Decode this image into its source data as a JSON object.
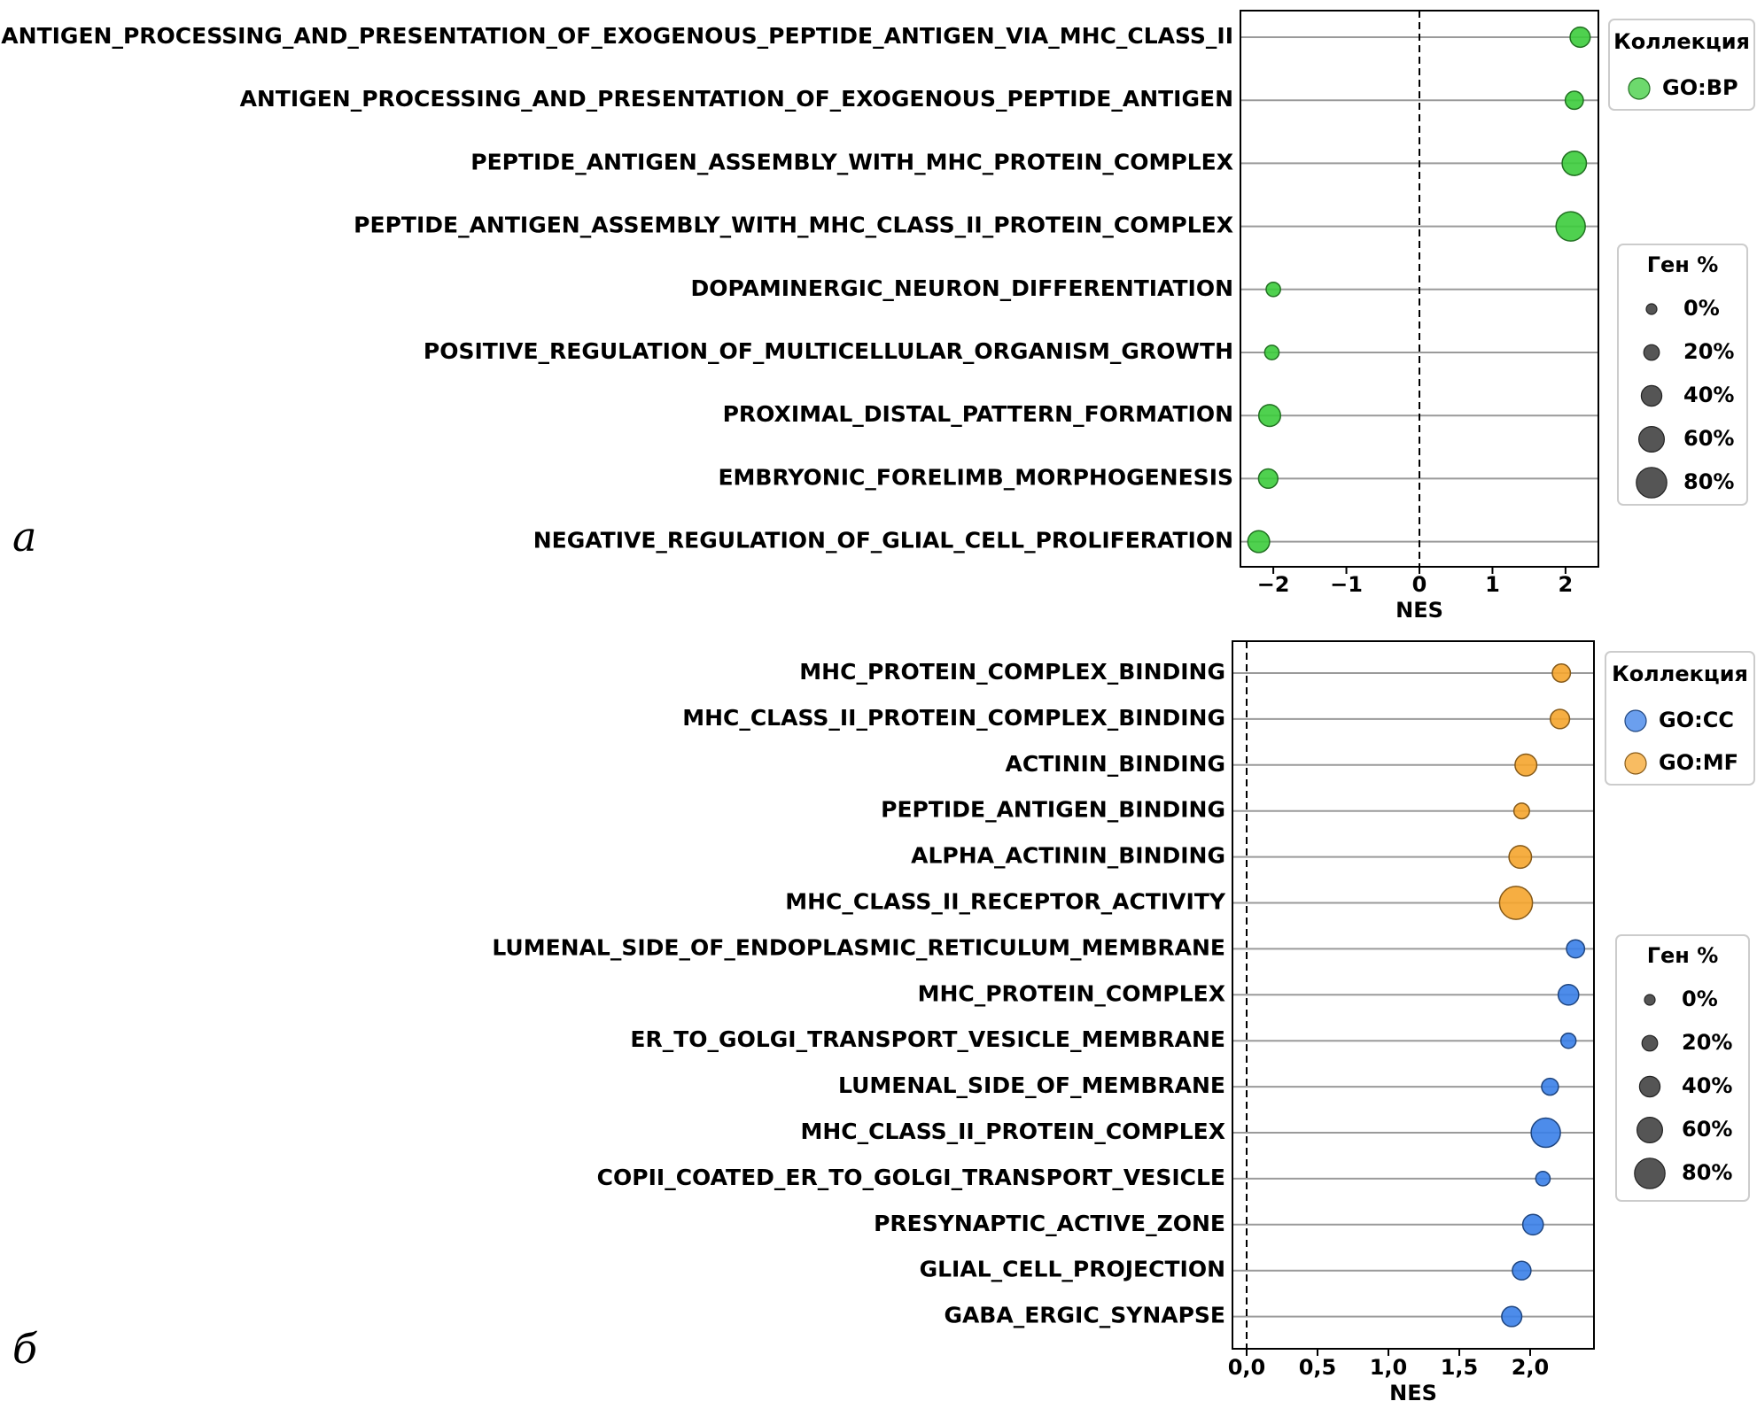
{
  "chart_data": [
    {
      "type": "scatter",
      "panel_label": "а",
      "xlabel": "NES",
      "xlim": [
        -2.45,
        2.45
      ],
      "xticks": [
        -2,
        -1,
        0,
        1,
        2
      ],
      "xtick_labels": [
        "−2",
        "−1",
        "0",
        "1",
        "2"
      ],
      "reference_line_x": 0,
      "categories": [
        "ANTIGEN_PROCESSING_AND_PRESENTATION_OF_EXOGENOUS_PEPTIDE_ANTIGEN_VIA_MHC_CLASS_II",
        "ANTIGEN_PROCESSING_AND_PRESENTATION_OF_EXOGENOUS_PEPTIDE_ANTIGEN",
        "PEPTIDE_ANTIGEN_ASSEMBLY_WITH_MHC_PROTEIN_COMPLEX",
        "PEPTIDE_ANTIGEN_ASSEMBLY_WITH_MHC_CLASS_II_PROTEIN_COMPLEX",
        "DOPAMINERGIC_NEURON_DIFFERENTIATION",
        "POSITIVE_REGULATION_OF_MULTICELLULAR_ORGANISM_GROWTH",
        "PROXIMAL_DISTAL_PATTERN_FORMATION",
        "EMBRYONIC_FORELIMB_MORPHOGENESIS",
        "NEGATIVE_REGULATION_OF_GLIAL_CELL_PROLIFERATION"
      ],
      "points": [
        {
          "nes": 2.2,
          "gene_pct": 38,
          "collection": "GO:BP"
        },
        {
          "nes": 2.12,
          "gene_pct": 30,
          "collection": "GO:BP"
        },
        {
          "nes": 2.12,
          "gene_pct": 55,
          "collection": "GO:BP"
        },
        {
          "nes": 2.07,
          "gene_pct": 75,
          "collection": "GO:BP"
        },
        {
          "nes": -2.0,
          "gene_pct": 15,
          "collection": "GO:BP"
        },
        {
          "nes": -2.02,
          "gene_pct": 15,
          "collection": "GO:BP"
        },
        {
          "nes": -2.05,
          "gene_pct": 45,
          "collection": "GO:BP"
        },
        {
          "nes": -2.07,
          "gene_pct": 35,
          "collection": "GO:BP"
        },
        {
          "nes": -2.2,
          "gene_pct": 45,
          "collection": "GO:BP"
        }
      ],
      "collection_legend": {
        "title": "Коллекция",
        "entries": [
          {
            "label": "GO:BP",
            "color": "#3ccc3c"
          }
        ]
      },
      "size_legend": {
        "title": "Ген %",
        "entries": [
          {
            "label": "0%",
            "pct": 0
          },
          {
            "label": "20%",
            "pct": 20
          },
          {
            "label": "40%",
            "pct": 40
          },
          {
            "label": "60%",
            "pct": 60
          },
          {
            "label": "80%",
            "pct": 80
          }
        ]
      },
      "grid": "horizontal"
    },
    {
      "type": "scatter",
      "panel_label": "б",
      "xlabel": "NES",
      "xlim": [
        -0.1,
        2.45
      ],
      "xticks": [
        0,
        0.5,
        1,
        1.5,
        2
      ],
      "xtick_labels": [
        "0,0",
        "0,5",
        "1,0",
        "1,5",
        "2,0"
      ],
      "reference_line_x": 0,
      "categories": [
        "MHC_PROTEIN_COMPLEX_BINDING",
        "MHC_CLASS_II_PROTEIN_COMPLEX_BINDING",
        "ACTININ_BINDING",
        "PEPTIDE_ANTIGEN_BINDING",
        "ALPHA_ACTININ_BINDING",
        "MHC_CLASS_II_RECEPTOR_ACTIVITY",
        "LUMENAL_SIDE_OF_ENDOPLASMIC_RETICULUM_MEMBRANE",
        "MHC_PROTEIN_COMPLEX",
        "ER_TO_GOLGI_TRANSPORT_VESICLE_MEMBRANE",
        "LUMENAL_SIDE_OF_MEMBRANE",
        "MHC_CLASS_II_PROTEIN_COMPLEX",
        "COPII_COATED_ER_TO_GOLGI_TRANSPORT_VESICLE",
        "PRESYNAPTIC_ACTIVE_ZONE",
        "GLIAL_CELL_PROJECTION",
        "GABA_ERGIC_SYNAPSE"
      ],
      "points": [
        {
          "nes": 2.22,
          "gene_pct": 30,
          "collection": "GO:MF"
        },
        {
          "nes": 2.21,
          "gene_pct": 35,
          "collection": "GO:MF"
        },
        {
          "nes": 1.97,
          "gene_pct": 45,
          "collection": "GO:MF"
        },
        {
          "nes": 1.94,
          "gene_pct": 20,
          "collection": "GO:MF"
        },
        {
          "nes": 1.93,
          "gene_pct": 48,
          "collection": "GO:MF"
        },
        {
          "nes": 1.9,
          "gene_pct": 90,
          "collection": "GO:MF"
        },
        {
          "nes": 2.32,
          "gene_pct": 30,
          "collection": "GO:CC"
        },
        {
          "nes": 2.27,
          "gene_pct": 40,
          "collection": "GO:CC"
        },
        {
          "nes": 2.27,
          "gene_pct": 18,
          "collection": "GO:CC"
        },
        {
          "nes": 2.14,
          "gene_pct": 25,
          "collection": "GO:CC"
        },
        {
          "nes": 2.11,
          "gene_pct": 75,
          "collection": "GO:CC"
        },
        {
          "nes": 2.09,
          "gene_pct": 15,
          "collection": "GO:CC"
        },
        {
          "nes": 2.02,
          "gene_pct": 40,
          "collection": "GO:CC"
        },
        {
          "nes": 1.94,
          "gene_pct": 32,
          "collection": "GO:CC"
        },
        {
          "nes": 1.87,
          "gene_pct": 38,
          "collection": "GO:CC"
        }
      ],
      "collection_legend": {
        "title": "Коллекция",
        "entries": [
          {
            "label": "GO:CC",
            "color": "#3a7fe8"
          },
          {
            "label": "GO:MF",
            "color": "#f5a52e"
          }
        ]
      },
      "size_legend": {
        "title": "Ген %",
        "entries": [
          {
            "label": "0%",
            "pct": 0
          },
          {
            "label": "20%",
            "pct": 20
          },
          {
            "label": "40%",
            "pct": 40
          },
          {
            "label": "60%",
            "pct": 60
          },
          {
            "label": "80%",
            "pct": 80
          }
        ]
      },
      "grid": "horizontal"
    }
  ],
  "colors": {
    "GO:BP": "#3ccc3c",
    "GO:CC": "#3a7fe8",
    "GO:MF": "#f5a52e"
  }
}
